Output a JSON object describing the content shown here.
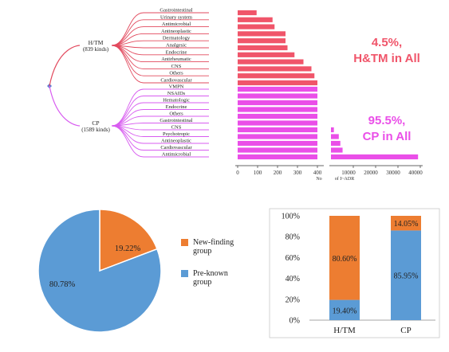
{
  "chart_data": [
    {
      "type": "tree",
      "groups": [
        {
          "name": "H/TM",
          "kinds": "(839 kinds)",
          "children": [
            "Gastrointestinal",
            "Urinary system",
            "Antimicrobial",
            "Antineoplastic",
            "Dermatology",
            "Analgesic",
            "Endocrine",
            "Antirheumatic",
            "CNS",
            "Others",
            "Cardiovascular"
          ]
        },
        {
          "name": "CP",
          "kinds": "(1589 kinds)",
          "children": [
            "VMPN",
            "NSAIDs",
            "Hematologic",
            "Endocrine",
            "Others",
            "Gastrointestinal",
            "CNS",
            "Psychotropic",
            "Antineoplastic",
            "Cardiovascular",
            "Antimicrobial"
          ]
        }
      ]
    },
    {
      "type": "bar",
      "orientation": "horizontal",
      "subtitle": "H/TM",
      "color": "#f0556a",
      "categories": [
        "Gastrointestinal",
        "Urinary system",
        "Antimicrobial",
        "Antineoplastic",
        "Dermatology",
        "Analgesic",
        "Endocrine",
        "Antirheumatic",
        "CNS",
        "Others",
        "Cardiovascular"
      ],
      "values": [
        95,
        175,
        185,
        240,
        240,
        250,
        285,
        330,
        370,
        385,
        400
      ],
      "xlim": [
        0,
        400
      ],
      "xticks": [
        "0",
        "100",
        "200",
        "300",
        "400"
      ],
      "annotation": {
        "line1": "4.5%,",
        "line2": "H&TM in All",
        "color": "#f0556a"
      }
    },
    {
      "type": "bar",
      "orientation": "horizontal",
      "subtitle": "CP",
      "color": "#ea4fe8",
      "categories": [
        "VMPN",
        "NSAIDs",
        "Hematologic",
        "Endocrine",
        "Others",
        "Gastrointestinal",
        "CNS",
        "Psychotropic",
        "Antineoplastic",
        "Cardiovascular",
        "Antimicrobial"
      ],
      "values_left": [
        400,
        400,
        400,
        400,
        400,
        400,
        400,
        400,
        400,
        400,
        400
      ],
      "values_right": [
        0,
        0,
        0,
        0,
        0,
        0,
        1300,
        3500,
        4200,
        5200,
        39000
      ],
      "xlim_left": [
        0,
        400
      ],
      "xlim_right": [
        0,
        40000
      ],
      "xticks_right": [
        "10000",
        "20000",
        "30000",
        "40000"
      ],
      "xlabel_left": "No",
      "xlabel_right": "of I~ADR",
      "annotation": {
        "line1": "95.5%,",
        "line2": "CP in All",
        "color": "#ea4fe8"
      }
    },
    {
      "type": "pie",
      "slices": [
        {
          "label": "New-finding group",
          "value": 19.22,
          "text": "19.22%",
          "color": "#ed7d31"
        },
        {
          "label": "Pre-known group",
          "value": 80.78,
          "text": "80.78%",
          "color": "#5b9bd5"
        }
      ],
      "legend_position": "right"
    },
    {
      "type": "bar",
      "stacked": true,
      "percent": true,
      "categories": [
        "H/TM",
        "CP"
      ],
      "series": [
        {
          "color": "#5b9bd5",
          "values": [
            19.4,
            85.95
          ],
          "labels": [
            "19.40%",
            "85.95%"
          ]
        },
        {
          "color": "#ed7d31",
          "values": [
            80.6,
            14.05
          ],
          "labels": [
            "80.60%",
            "14.05%"
          ]
        }
      ],
      "ylim": [
        0,
        100
      ],
      "yticks": [
        "0%",
        "20%",
        "40%",
        "60%",
        "80%",
        "100%"
      ]
    }
  ]
}
